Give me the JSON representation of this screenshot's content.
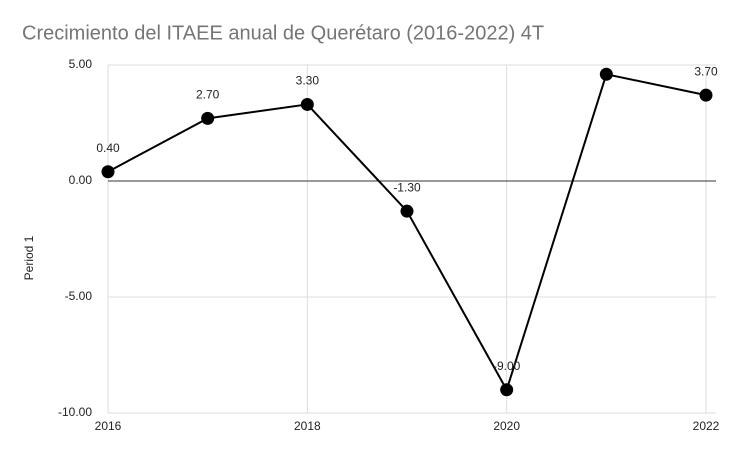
{
  "chart_data": {
    "type": "line",
    "title": "Crecimiento del ITAEE anual de Querétaro (2016-2022) 4T",
    "y_label": "Period 1",
    "x": [
      2016,
      2017,
      2018,
      2019,
      2020,
      2021,
      2022
    ],
    "values": [
      0.4,
      2.7,
      3.3,
      -1.3,
      -9.0,
      4.6,
      3.7
    ],
    "value_labels": [
      "0.40",
      "2.70",
      "3.30",
      "-1.30",
      "-9.00",
      null,
      "3.70"
    ],
    "color": "#000000",
    "xlim": [
      2016,
      2022
    ],
    "xticks": [
      2016,
      2018,
      2020,
      2022
    ],
    "ylim": [
      -10,
      5
    ],
    "yticks": [
      {
        "value": 5,
        "label": "5.00"
      },
      {
        "value": 0,
        "label": "0.00"
      },
      {
        "value": -5,
        "label": "-5.00"
      },
      {
        "value": -10,
        "label": "-10.00"
      }
    ],
    "grid": true
  }
}
